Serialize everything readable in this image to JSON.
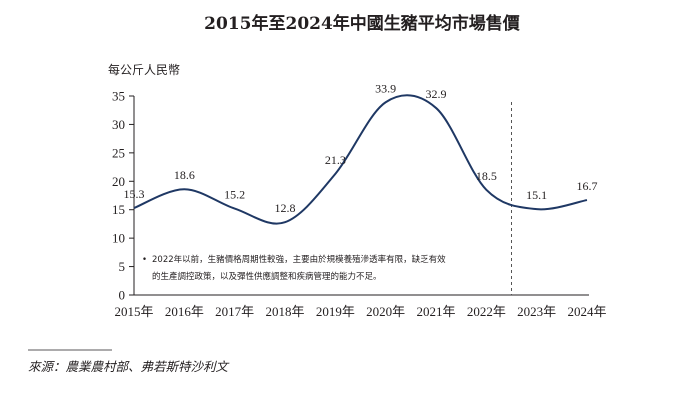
{
  "chart_data": {
    "type": "line",
    "title": "2015年至2024年中國生豬平均市場售價",
    "ylabel": "每公斤人民幣",
    "xlabel": "",
    "categories": [
      "2015年",
      "2016年",
      "2017年",
      "2018年",
      "2019年",
      "2020年",
      "2021年",
      "2022年",
      "2023年",
      "2024年"
    ],
    "values": [
      15.3,
      18.6,
      15.2,
      12.8,
      21.3,
      33.9,
      32.9,
      18.5,
      15.1,
      16.7
    ],
    "data_labels": [
      "15.3",
      "18.6",
      "15.2",
      "12.8",
      "21.3",
      "33.9",
      "32.9",
      "18.5",
      "15.1",
      "16.7"
    ],
    "ylim": [
      0,
      35
    ],
    "yticks": [
      "0",
      "5",
      "10",
      "15",
      "20",
      "25",
      "30",
      "35"
    ],
    "grid": false,
    "forecast_divider_after": "2022年",
    "line_color": "#1f3864",
    "annotation": {
      "bullet": "•",
      "lines": [
        "2022年以前，生豬價格周期性較強，主要由於規模養殖滲透率有限，缺乏有效",
        "的生產調控政策，以及彈性供應調整和疾病管理的能力不足。"
      ]
    }
  },
  "source": "來源：農業農村部、弗若斯特沙利文"
}
